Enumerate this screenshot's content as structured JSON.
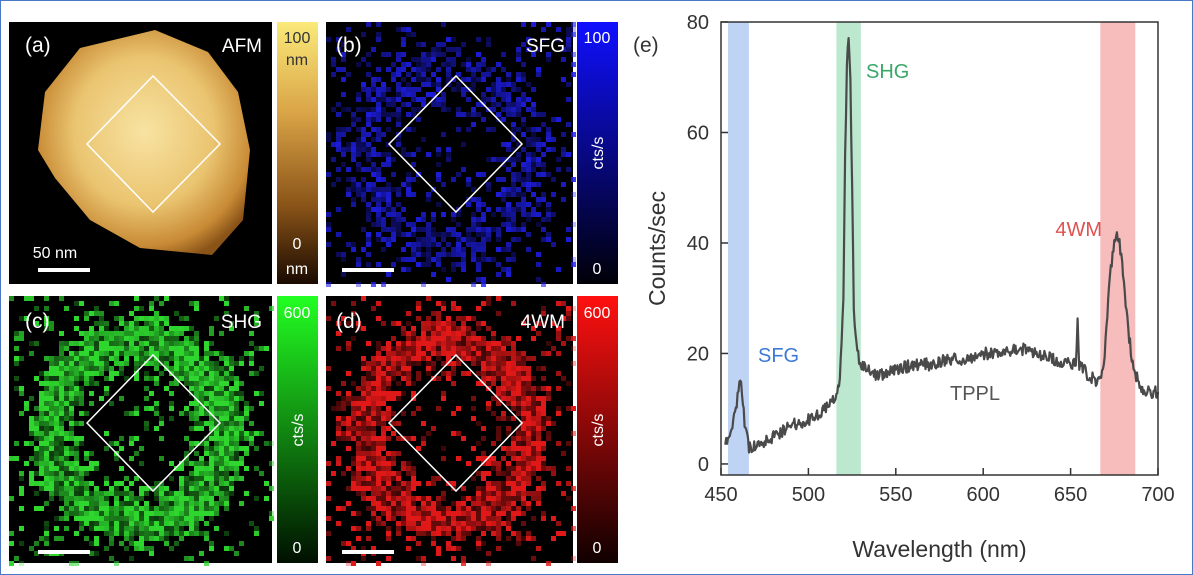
{
  "panels": {
    "a": {
      "label": "(a)",
      "title": "AFM",
      "colorbar": {
        "top": "100",
        "top_unit": "nm",
        "bottom": "0",
        "bottom_unit": "nm"
      },
      "scalebar": "50 nm"
    },
    "b": {
      "label": "(b)",
      "title": "SFG",
      "colorbar": {
        "top": "100",
        "unit": "cts/s",
        "bottom": "0"
      }
    },
    "c": {
      "label": "(c)",
      "title": "SHG",
      "colorbar": {
        "top": "600",
        "unit": "cts/s",
        "bottom": "0"
      }
    },
    "d": {
      "label": "(d)",
      "title": "4WM",
      "colorbar": {
        "top": "600",
        "unit": "cts/s",
        "bottom": "0"
      }
    },
    "e": {
      "label": "(e)"
    }
  },
  "colors": {
    "sfg": "#1f1ff0",
    "shg": "#2ed62e",
    "wm": "#e01818",
    "afm": "#e6b455",
    "trace": "#4a4a4a",
    "frame": "#4a78c4"
  },
  "chart_data": {
    "type": "line",
    "xlabel": "Wavelength (nm)",
    "ylabel": "Counts/sec",
    "xlim": [
      450,
      700
    ],
    "ylim": [
      -2,
      80
    ],
    "xticks": [
      450,
      500,
      550,
      600,
      650,
      700
    ],
    "yticks": [
      0,
      20,
      40,
      60,
      80
    ],
    "bands": [
      {
        "label": "SFG",
        "range": [
          454,
          466
        ],
        "color": "#a9c5f2",
        "label_color": "#3d7ad6"
      },
      {
        "label": "SHG",
        "range": [
          516,
          530
        ],
        "color": "#a5e0bf",
        "label_color": "#3aa868"
      },
      {
        "label": "4WM",
        "range": [
          667,
          687
        ],
        "color": "#f4a5a5",
        "label_color": "#e05050"
      }
    ],
    "annotations": [
      {
        "text": "TPPL",
        "color": "#555555"
      }
    ],
    "series": [
      {
        "x": [
          452,
          455,
          458,
          460,
          461,
          462,
          464,
          466,
          470,
          475,
          480,
          490,
          500,
          505,
          510,
          515,
          518,
          520,
          521,
          522,
          523,
          524,
          525,
          526,
          528,
          530,
          540,
          550,
          560,
          570,
          580,
          590,
          600,
          610,
          620,
          630,
          640,
          650,
          653,
          654,
          655,
          656,
          658,
          660,
          665,
          668,
          670,
          672,
          674,
          676,
          678,
          680,
          683,
          686,
          690,
          695,
          700
        ],
        "y": [
          3,
          5,
          9,
          13,
          15,
          13,
          6,
          3,
          3,
          4,
          5,
          7,
          8,
          9,
          10,
          12,
          15,
          30,
          55,
          72,
          78,
          70,
          50,
          28,
          20,
          18,
          16,
          17,
          18,
          18,
          19,
          19,
          20,
          20,
          21,
          20,
          19,
          18,
          18,
          26,
          18,
          18,
          17,
          16,
          15,
          16,
          22,
          33,
          38,
          42,
          40,
          35,
          24,
          17,
          14,
          13,
          13
        ]
      }
    ]
  }
}
